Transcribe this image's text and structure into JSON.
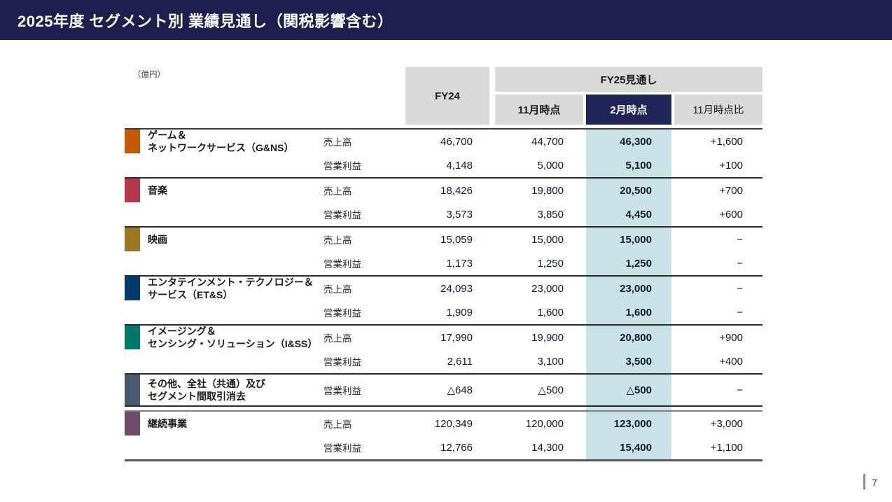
{
  "title_bar": {
    "title": "2025年度 セグメント別 業績見通し（関税影響含む）"
  },
  "unit_label": "（億円）",
  "page_number": "7",
  "colors": {
    "title_bar_bg": "#1e1f4e",
    "header_cell_bg": "#d9d9d9",
    "feb_header_bg": "#212456",
    "feb_column_highlight": "#c9e2e6"
  },
  "table": {
    "headers": {
      "fy24": "FY24",
      "fy25_group": "FY25見通し",
      "nov": "11月時点",
      "feb": "2月時点",
      "vs_nov": "11月時点比"
    },
    "segments": [
      {
        "id": "gns",
        "name_lines": [
          "ゲーム＆",
          "ネットワークサービス（G&NS）"
        ],
        "color": "#c25c04",
        "is_total": false,
        "rows": [
          {
            "metric": "売上高",
            "fy24": "46,700",
            "nov": "44,700",
            "feb": "46,300",
            "diff": "+1,600"
          },
          {
            "metric": "営業利益",
            "fy24": "4,148",
            "nov": "5,000",
            "feb": "5,100",
            "diff": "+100"
          }
        ]
      },
      {
        "id": "music",
        "name_lines": [
          "音楽"
        ],
        "color": "#b2394b",
        "is_total": false,
        "rows": [
          {
            "metric": "売上高",
            "fy24": "18,426",
            "nov": "19,800",
            "feb": "20,500",
            "diff": "+700"
          },
          {
            "metric": "営業利益",
            "fy24": "3,573",
            "nov": "3,850",
            "feb": "4,450",
            "diff": "+600"
          }
        ]
      },
      {
        "id": "pictures",
        "name_lines": [
          "映画"
        ],
        "color": "#9d7623",
        "is_total": false,
        "rows": [
          {
            "metric": "売上高",
            "fy24": "15,059",
            "nov": "15,000",
            "feb": "15,000",
            "diff": "−"
          },
          {
            "metric": "営業利益",
            "fy24": "1,173",
            "nov": "1,250",
            "feb": "1,250",
            "diff": "−"
          }
        ]
      },
      {
        "id": "ets",
        "name_lines": [
          "エンタテインメント・テクノロジー＆",
          "サービス（ET&S）"
        ],
        "color": "#003a6b",
        "is_total": false,
        "rows": [
          {
            "metric": "売上高",
            "fy24": "24,093",
            "nov": "23,000",
            "feb": "23,000",
            "diff": "−"
          },
          {
            "metric": "営業利益",
            "fy24": "1,909",
            "nov": "1,600",
            "feb": "1,600",
            "diff": "−"
          }
        ]
      },
      {
        "id": "iss",
        "name_lines": [
          "イメージング＆",
          "センシング・ソリューション（I&SS）"
        ],
        "color": "#00796a",
        "is_total": false,
        "rows": [
          {
            "metric": "売上高",
            "fy24": "17,990",
            "nov": "19,900",
            "feb": "20,800",
            "diff": "+900"
          },
          {
            "metric": "営業利益",
            "fy24": "2,611",
            "nov": "3,100",
            "feb": "3,500",
            "diff": "+400"
          }
        ]
      },
      {
        "id": "others",
        "name_lines": [
          "その他、全社（共通）及び",
          "セグメント間取引消去"
        ],
        "color": "#475a6e",
        "is_total": false,
        "rows": [
          {
            "metric": "営業利益",
            "fy24": "△648",
            "nov": "△500",
            "feb": "△500",
            "diff": "−"
          }
        ]
      },
      {
        "id": "continuing-operations",
        "name_lines": [
          "継続事業"
        ],
        "color": "#6e4b68",
        "is_total": true,
        "rows": [
          {
            "metric": "売上高",
            "fy24": "120,349",
            "nov": "120,000",
            "feb": "123,000",
            "diff": "+3,000"
          },
          {
            "metric": "営業利益",
            "fy24": "12,766",
            "nov": "14,300",
            "feb": "15,400",
            "diff": "+1,100"
          }
        ]
      }
    ]
  }
}
